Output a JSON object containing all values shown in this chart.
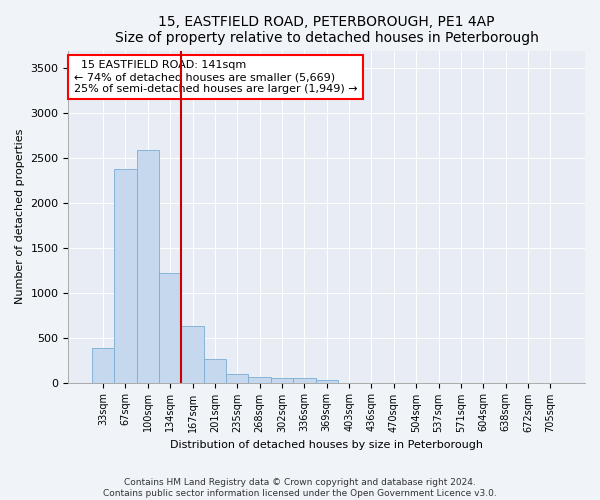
{
  "title": "15, EASTFIELD ROAD, PETERBOROUGH, PE1 4AP",
  "subtitle": "Size of property relative to detached houses in Peterborough",
  "xlabel": "Distribution of detached houses by size in Peterborough",
  "ylabel": "Number of detached properties",
  "footer_line1": "Contains HM Land Registry data © Crown copyright and database right 2024.",
  "footer_line2": "Contains public sector information licensed under the Open Government Licence v3.0.",
  "annotation_line1": "  15 EASTFIELD ROAD: 141sqm  ",
  "annotation_line2": "← 74% of detached houses are smaller (5,669)",
  "annotation_line3": "25% of semi-detached houses are larger (1,949) →",
  "bar_color": "#c5d8ee",
  "bar_edge_color": "#7aadd4",
  "red_line_color": "#cc0000",
  "categories": [
    "33sqm",
    "67sqm",
    "100sqm",
    "134sqm",
    "167sqm",
    "201sqm",
    "235sqm",
    "268sqm",
    "302sqm",
    "336sqm",
    "369sqm",
    "403sqm",
    "436sqm",
    "470sqm",
    "504sqm",
    "537sqm",
    "571sqm",
    "604sqm",
    "638sqm",
    "672sqm",
    "705sqm"
  ],
  "values": [
    390,
    2380,
    2590,
    1220,
    630,
    260,
    90,
    60,
    50,
    50,
    30,
    0,
    0,
    0,
    0,
    0,
    0,
    0,
    0,
    0,
    0
  ],
  "red_line_index": 4,
  "ylim": [
    0,
    3700
  ],
  "yticks": [
    0,
    500,
    1000,
    1500,
    2000,
    2500,
    3000,
    3500
  ],
  "background_color": "#f0f4f8",
  "plot_background": "#e8edf5"
}
